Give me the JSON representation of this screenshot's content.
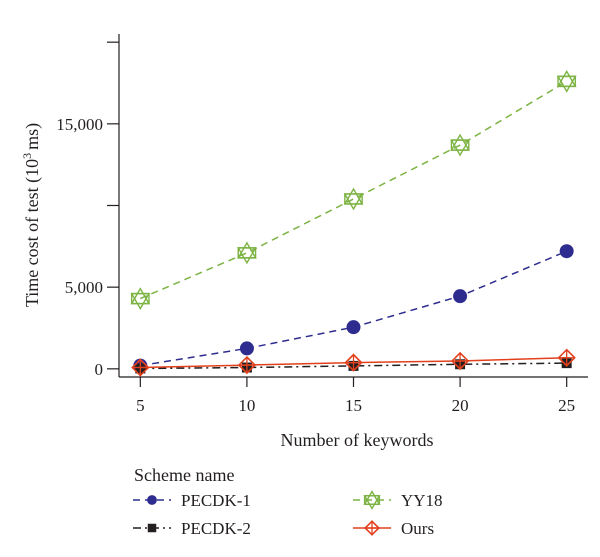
{
  "chart_data": {
    "type": "line",
    "title": "",
    "xlabel": "Number of keywords",
    "ylabel": "Time cost of test (10",
    "ylabel_sup": "3",
    "ylabel_unit": "ms)",
    "x": [
      5,
      10,
      15,
      20,
      25
    ],
    "xlim": [
      4,
      26
    ],
    "ylim": [
      -500,
      20500
    ],
    "y_ticks": [
      0,
      5000,
      10000,
      15000,
      20000
    ],
    "y_tick_labels": [
      "0",
      "5,000",
      "",
      "15,000",
      ""
    ],
    "x_tick_labels": [
      "5",
      "10",
      "15",
      "20",
      "25"
    ],
    "grid": false,
    "legend": {
      "title": "Scheme name",
      "placement": "bottom"
    },
    "series": [
      {
        "name": "PECDK-1",
        "values": [
          200,
          1250,
          2550,
          4450,
          7200
        ],
        "color": "#2e2d8f",
        "marker": "circle",
        "dash": "dashed"
      },
      {
        "name": "PECDK-2",
        "values": [
          20,
          80,
          180,
          280,
          350
        ],
        "color": "#231f20",
        "marker": "square",
        "dash": "dashdot"
      },
      {
        "name": "YY18",
        "values": [
          4300,
          7100,
          10400,
          13700,
          17600
        ],
        "color": "#7cb342",
        "marker": "star",
        "dash": "dashed"
      },
      {
        "name": "Ours",
        "values": [
          80,
          230,
          380,
          480,
          680
        ],
        "color": "#e2401c",
        "marker": "diamond",
        "dash": "solid"
      }
    ]
  }
}
